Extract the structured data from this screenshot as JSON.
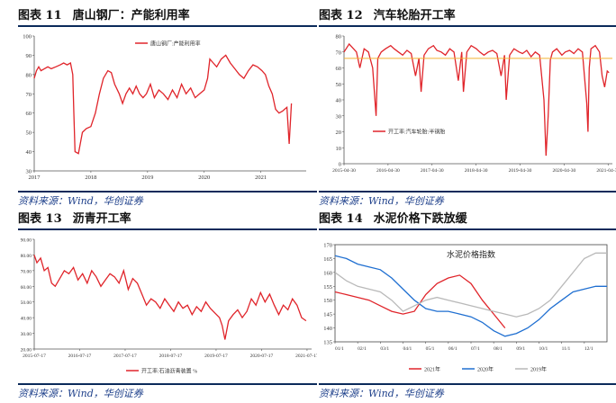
{
  "figures": [
    {
      "label": "图表 11",
      "title": "唐山钢厂：产能利用率",
      "source": "资料来源：Wind，华创证券"
    },
    {
      "label": "图表 12",
      "title": "汽车轮胎开工率",
      "source": "资料来源：Wind，华创证券"
    },
    {
      "label": "图表 13",
      "title": "沥青开工率",
      "source": "资料来源：Wind，华创证券"
    },
    {
      "label": "图表 14",
      "title": "水泥价格下跌放缓",
      "source": "资料来源：Wind，华创证券"
    }
  ],
  "colors": {
    "red": "#e0242a",
    "blue": "#1f6fd1",
    "gray": "#b9b9b9",
    "orange": "#f2b233",
    "rule": "#0b2a5a"
  },
  "chart_data": [
    {
      "type": "line",
      "title": "",
      "x_ticks": [
        "2017",
        "2018",
        "2019",
        "2020",
        "2021"
      ],
      "xlim": [
        2017.0,
        2021.8
      ],
      "ylim": [
        30,
        100
      ],
      "y_ticks": [
        "30",
        "40",
        "50",
        "60",
        "70",
        "80",
        "90",
        "100"
      ],
      "legend_position": "top-center",
      "series": [
        {
          "name": "唐山钢厂:产能利用率",
          "color": "#e0242a",
          "x": [
            2017.0,
            2017.04,
            2017.08,
            2017.12,
            2017.18,
            2017.24,
            2017.3,
            2017.38,
            2017.46,
            2017.52,
            2017.58,
            2017.64,
            2017.68,
            2017.7,
            2017.72,
            2017.78,
            2017.85,
            2017.92,
            2018.0,
            2018.08,
            2018.15,
            2018.22,
            2018.3,
            2018.36,
            2018.42,
            2018.5,
            2018.56,
            2018.62,
            2018.68,
            2018.74,
            2018.8,
            2018.86,
            2018.92,
            2018.98,
            2019.05,
            2019.12,
            2019.2,
            2019.28,
            2019.36,
            2019.44,
            2019.52,
            2019.6,
            2019.68,
            2019.76,
            2019.84,
            2019.92,
            2020.0,
            2020.06,
            2020.1,
            2020.16,
            2020.22,
            2020.3,
            2020.38,
            2020.46,
            2020.54,
            2020.62,
            2020.7,
            2020.78,
            2020.86,
            2020.94,
            2021.02,
            2021.08,
            2021.14,
            2021.2,
            2021.26,
            2021.32,
            2021.38,
            2021.42,
            2021.46,
            2021.5,
            2021.54
          ],
          "y": [
            78,
            82,
            84,
            82,
            83,
            84,
            83,
            84,
            85,
            86,
            85,
            86,
            80,
            60,
            40,
            39,
            50,
            52,
            53,
            60,
            70,
            78,
            82,
            81,
            75,
            70,
            65,
            70,
            73,
            70,
            74,
            70,
            68,
            70,
            75,
            68,
            72,
            70,
            67,
            72,
            68,
            75,
            70,
            73,
            68,
            70,
            72,
            78,
            88,
            86,
            84,
            88,
            90,
            86,
            83,
            80,
            78,
            82,
            85,
            84,
            82,
            80,
            74,
            70,
            62,
            60,
            61,
            62,
            63,
            44,
            65
          ]
        }
      ]
    },
    {
      "type": "line",
      "title": "",
      "x_ticks": [
        "2015-04-30",
        "2016-04-30",
        "2017-04-30",
        "2018-04-30",
        "2019-04-30",
        "2020-04-30",
        "2021-04-30"
      ],
      "xlim": [
        2015.33,
        2021.6
      ],
      "ylim": [
        0,
        80
      ],
      "y_ticks": [
        "0",
        "10",
        "20",
        "30",
        "40",
        "50",
        "60",
        "70",
        "80"
      ],
      "legend_position": "center",
      "series": [
        {
          "name": "开工率:汽车轮胎:半钢胎",
          "color": "#e0242a",
          "x": [
            2015.33,
            2015.45,
            2015.55,
            2015.62,
            2015.7,
            2015.8,
            2015.9,
            2016.0,
            2016.08,
            2016.12,
            2016.2,
            2016.3,
            2016.42,
            2016.5,
            2016.6,
            2016.7,
            2016.8,
            2016.9,
            2017.0,
            2017.08,
            2017.13,
            2017.2,
            2017.3,
            2017.42,
            2017.5,
            2017.6,
            2017.7,
            2017.8,
            2017.9,
            2018.0,
            2018.08,
            2018.12,
            2018.2,
            2018.3,
            2018.42,
            2018.5,
            2018.6,
            2018.7,
            2018.8,
            2018.9,
            2019.0,
            2019.08,
            2019.12,
            2019.2,
            2019.3,
            2019.42,
            2019.5,
            2019.6,
            2019.7,
            2019.8,
            2019.9,
            2020.0,
            2020.05,
            2020.1,
            2020.15,
            2020.2,
            2020.3,
            2020.42,
            2020.5,
            2020.6,
            2020.7,
            2020.8,
            2020.9,
            2021.0,
            2021.03,
            2021.06,
            2021.1,
            2021.2,
            2021.3,
            2021.36,
            2021.42,
            2021.48,
            2021.52
          ],
          "y": [
            70,
            75,
            72,
            70,
            60,
            72,
            70,
            60,
            30,
            66,
            70,
            72,
            74,
            72,
            70,
            68,
            71,
            69,
            55,
            66,
            45,
            68,
            72,
            74,
            71,
            70,
            68,
            72,
            70,
            52,
            70,
            45,
            70,
            74,
            72,
            70,
            68,
            70,
            71,
            69,
            55,
            68,
            40,
            68,
            72,
            70,
            69,
            71,
            67,
            70,
            68,
            40,
            5,
            30,
            65,
            70,
            72,
            68,
            70,
            71,
            69,
            72,
            70,
            38,
            20,
            60,
            72,
            74,
            70,
            55,
            48,
            58,
            57
          ]
        },
        {
          "name": "",
          "color": "#f2b233",
          "x": [
            2015.33,
            2021.6
          ],
          "y": [
            66,
            66
          ]
        }
      ]
    },
    {
      "type": "line",
      "title": "",
      "x_ticks": [
        "2015-07-17",
        "2016-07-17",
        "2017-07-17",
        "2018-07-17",
        "2019-07-17",
        "2020-07-17",
        "2021-07-17"
      ],
      "xlim": [
        2015.54,
        2021.62
      ],
      "ylim": [
        20,
        90
      ],
      "y_ticks": [
        "20.00",
        "30.00",
        "40.00",
        "50.00",
        "60.00",
        "70.00",
        "80.00",
        "90.00"
      ],
      "legend_position": "bottom-center",
      "series": [
        {
          "name": "开工率:石油沥青装置 %",
          "color": "#e0242a",
          "x": [
            2015.54,
            2015.6,
            2015.68,
            2015.76,
            2015.84,
            2015.92,
            2016.0,
            2016.1,
            2016.2,
            2016.3,
            2016.4,
            2016.5,
            2016.6,
            2016.7,
            2016.8,
            2016.9,
            2017.0,
            2017.1,
            2017.2,
            2017.3,
            2017.4,
            2017.5,
            2017.6,
            2017.7,
            2017.8,
            2017.9,
            2018.0,
            2018.1,
            2018.2,
            2018.3,
            2018.4,
            2018.5,
            2018.6,
            2018.7,
            2018.8,
            2018.9,
            2019.0,
            2019.1,
            2019.2,
            2019.3,
            2019.4,
            2019.5,
            2019.6,
            2019.66,
            2019.72,
            2019.8,
            2019.9,
            2020.0,
            2020.1,
            2020.2,
            2020.3,
            2020.4,
            2020.5,
            2020.6,
            2020.7,
            2020.8,
            2020.9,
            2021.0,
            2021.1,
            2021.2,
            2021.3,
            2021.4,
            2021.5
          ],
          "y": [
            80,
            75,
            78,
            70,
            72,
            62,
            60,
            65,
            70,
            68,
            72,
            64,
            68,
            62,
            70,
            66,
            60,
            64,
            68,
            66,
            62,
            70,
            58,
            65,
            62,
            55,
            48,
            52,
            50,
            46,
            52,
            48,
            44,
            50,
            46,
            48,
            42,
            47,
            44,
            50,
            46,
            43,
            40,
            35,
            26,
            38,
            42,
            45,
            40,
            44,
            52,
            48,
            56,
            50,
            55,
            48,
            42,
            48,
            45,
            52,
            48,
            40,
            38
          ]
        }
      ]
    },
    {
      "type": "line",
      "title": "水泥价格指数",
      "x_ticks": [
        "01/1",
        "02/1",
        "03/1",
        "04/1",
        "05/1",
        "06/1",
        "07/1",
        "08/1",
        "09/1",
        "10/1",
        "11/1",
        "12/1"
      ],
      "xlim": [
        0,
        12
      ],
      "ylim": [
        135,
        170
      ],
      "y_ticks": [
        "135",
        "140",
        "145",
        "150",
        "155",
        "160",
        "165",
        "170"
      ],
      "legend_position": "bottom-center",
      "series": [
        {
          "name": "2021年",
          "color": "#e0242a",
          "x": [
            0,
            0.5,
            1,
            1.5,
            2,
            2.5,
            3,
            3.5,
            4,
            4.5,
            5,
            5.5,
            6,
            6.5,
            7,
            7.5
          ],
          "y": [
            153,
            152,
            151,
            150,
            148,
            146,
            145,
            146,
            152,
            156,
            158,
            159,
            156,
            150,
            145,
            140
          ]
        },
        {
          "name": "2020年",
          "color": "#1f6fd1",
          "x": [
            0,
            0.5,
            1,
            1.5,
            2,
            2.5,
            3,
            3.5,
            4,
            4.5,
            5,
            5.5,
            6,
            6.5,
            7,
            7.5,
            8,
            8.5,
            9,
            9.5,
            10,
            10.5,
            11,
            11.5,
            12
          ],
          "y": [
            166,
            165,
            163,
            162,
            161,
            158,
            154,
            150,
            147,
            146,
            146,
            145,
            144,
            142,
            139,
            137,
            138,
            140,
            143,
            147,
            150,
            153,
            154,
            155,
            155
          ]
        },
        {
          "name": "2019年",
          "color": "#b9b9b9",
          "x": [
            0,
            0.5,
            1,
            1.5,
            2,
            2.5,
            3,
            3.5,
            4,
            4.5,
            5,
            5.5,
            6,
            6.5,
            7,
            7.5,
            8,
            8.5,
            9,
            9.5,
            10,
            10.5,
            11,
            11.5,
            12
          ],
          "y": [
            160,
            157,
            155,
            154,
            153,
            150,
            146,
            148,
            150,
            151,
            150,
            149,
            148,
            147,
            146,
            145,
            144,
            145,
            147,
            150,
            155,
            160,
            165,
            167,
            167
          ]
        }
      ]
    }
  ]
}
